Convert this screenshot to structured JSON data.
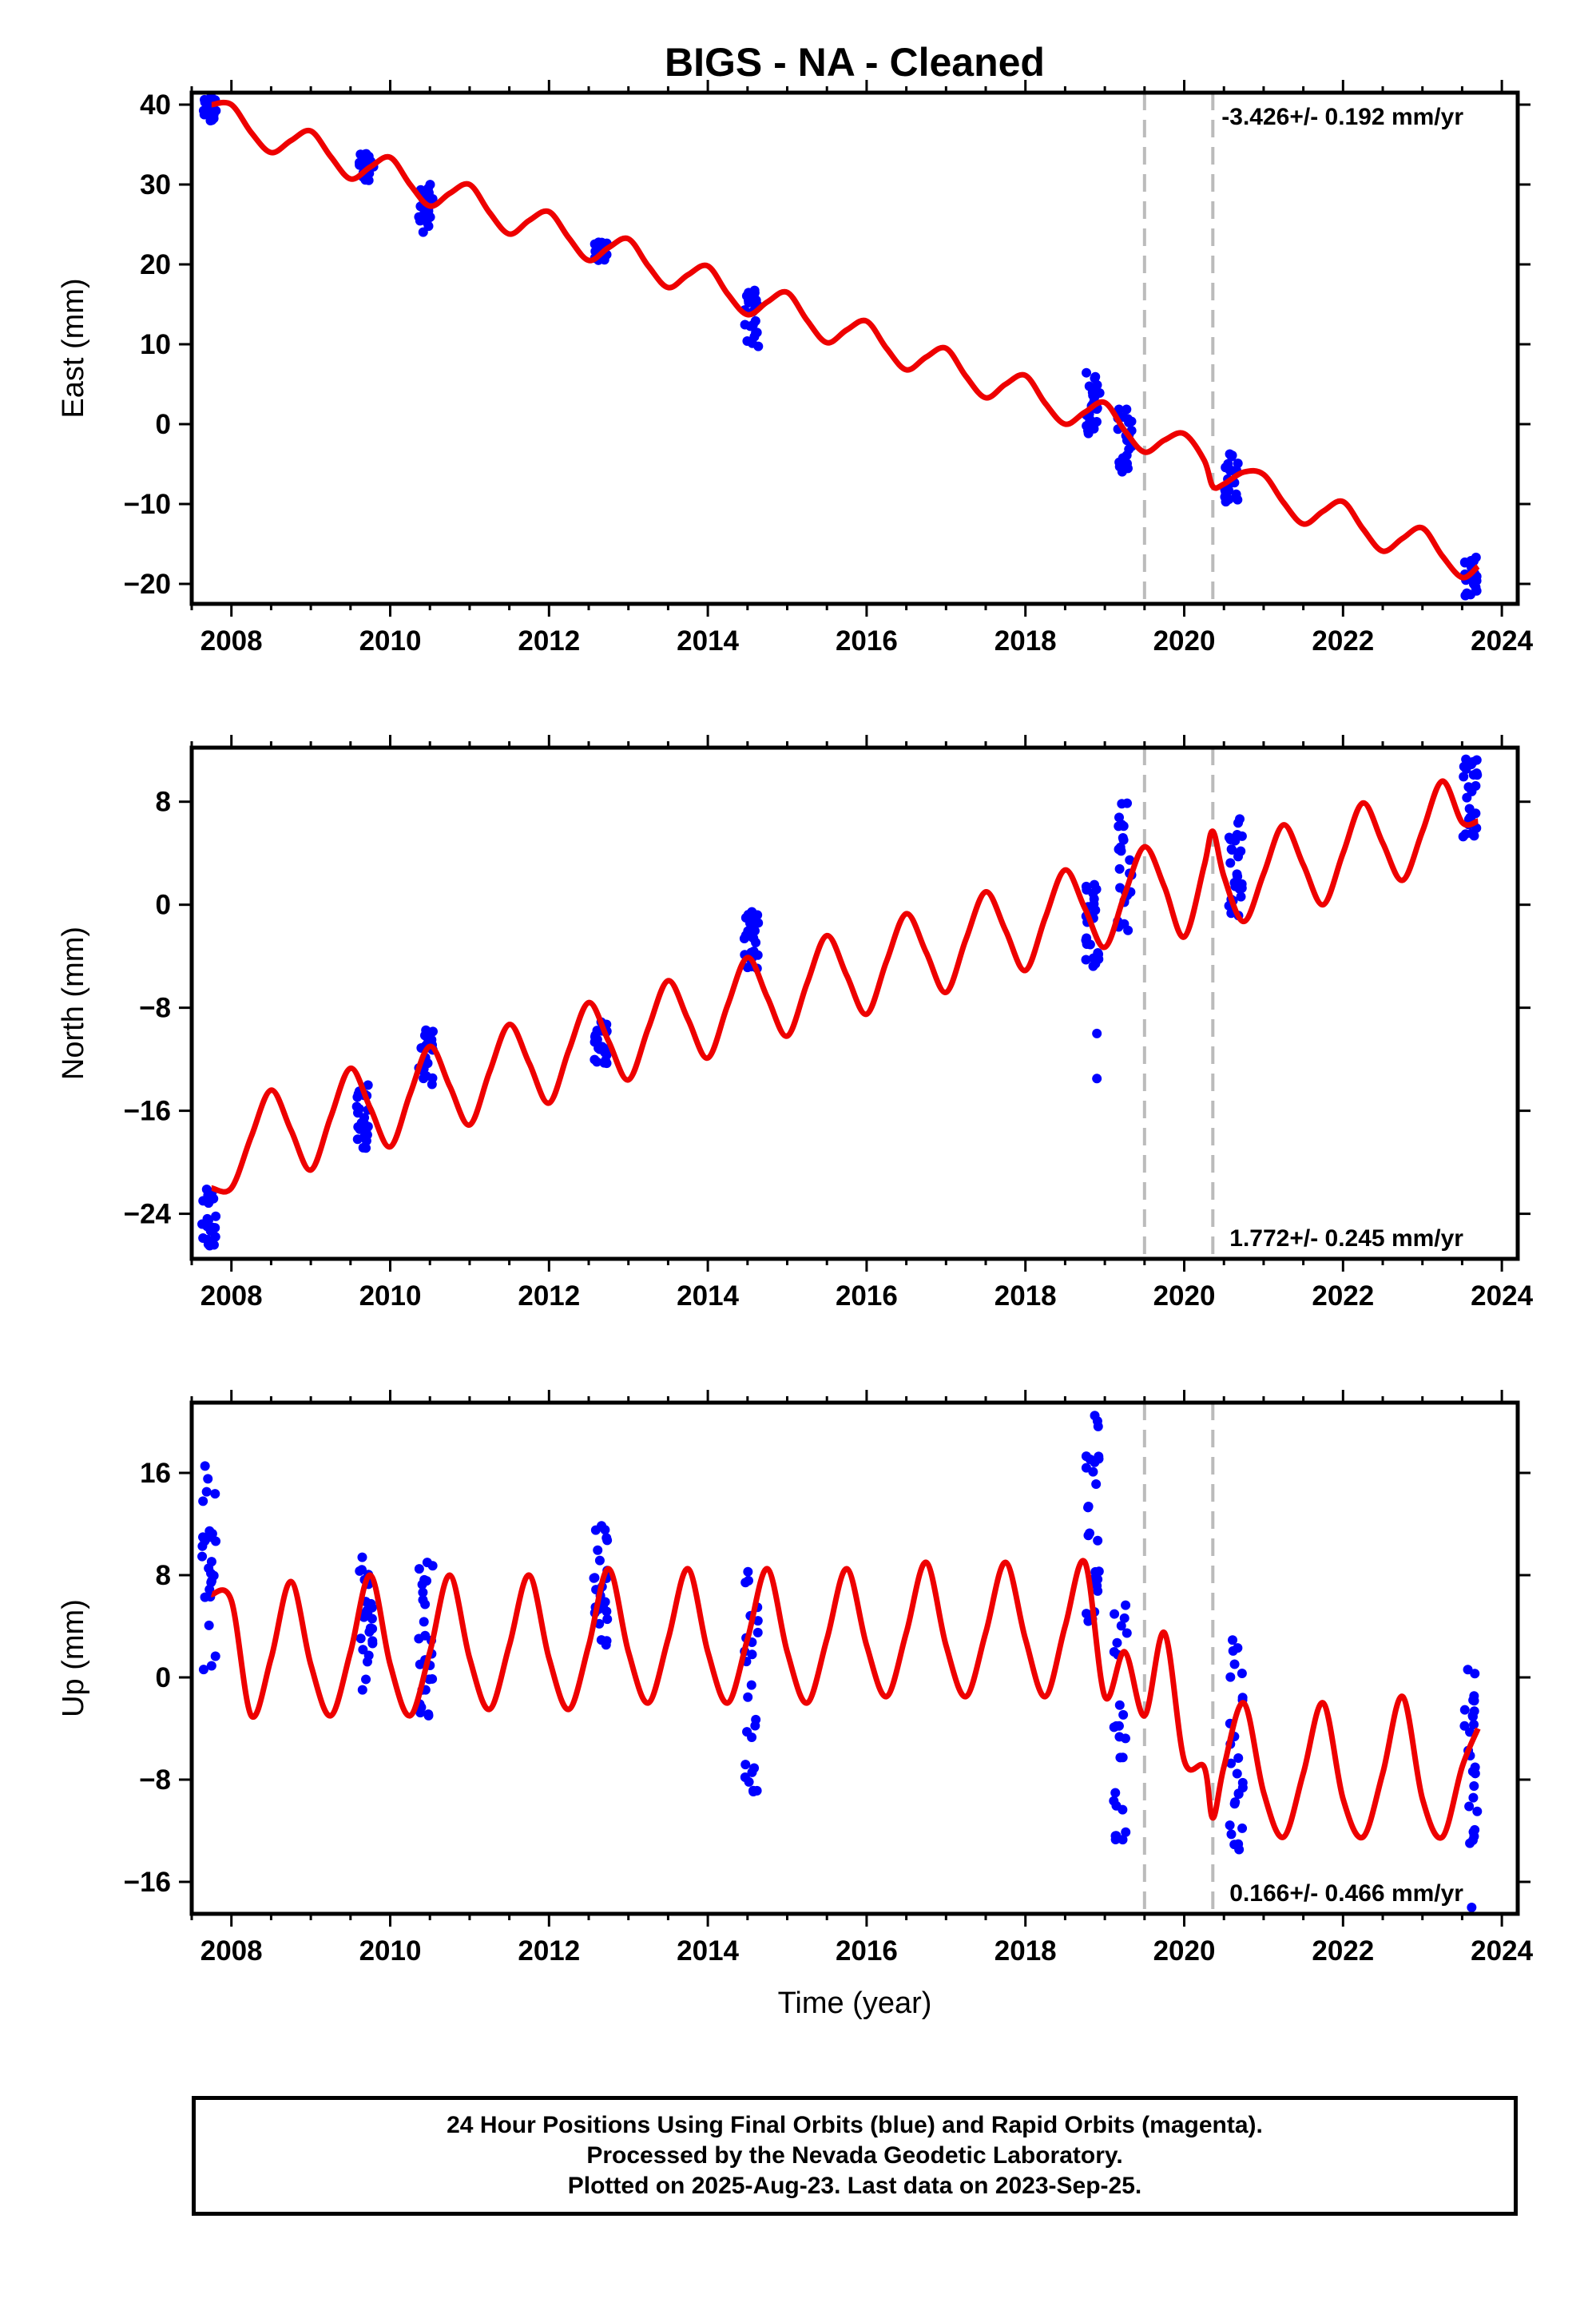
{
  "title": "BIGS  - NA - Cleaned",
  "xlabel": "Time (year)",
  "footer": {
    "line1": "24 Hour Positions Using Final Orbits (blue) and Rapid Orbits (magenta).",
    "line2": "Processed by the Nevada Geodetic Laboratory.",
    "line3": "Plotted on 2025-Aug-23. Last data on 2023-Sep-25."
  },
  "colors": {
    "data_points": "#0000ff",
    "model_line": "#ee0000",
    "event_lines": "#bbbbbb",
    "axes": "#000000"
  },
  "chart_data": [
    {
      "type": "scatter",
      "ylabel": "East (mm)",
      "rate_label": "-3.426+/- 0.192 mm/yr",
      "rate_position": "top-right",
      "xlim": [
        2007.5,
        2024.2
      ],
      "ylim": [
        -22.5,
        41.5
      ],
      "xticks": [
        2008,
        2010,
        2012,
        2014,
        2016,
        2018,
        2020,
        2022,
        2024
      ],
      "yticks": [
        -20,
        -10,
        0,
        10,
        20,
        30,
        40
      ],
      "ytick_labels": [
        "−20",
        "−10",
        "0",
        "10",
        "20",
        "30",
        "40"
      ],
      "grid": false,
      "event_lines": [
        2019.5,
        2020.36
      ],
      "model": {
        "x": [
          2007.75,
          2008.0,
          2008.25,
          2008.5,
          2008.75,
          2009.0,
          2009.25,
          2009.5,
          2009.75,
          2010.0,
          2010.25,
          2010.5,
          2010.75,
          2011.0,
          2011.25,
          2011.5,
          2011.75,
          2012.0,
          2012.25,
          2012.5,
          2012.75,
          2013.0,
          2013.25,
          2013.5,
          2013.75,
          2014.0,
          2014.25,
          2014.5,
          2014.75,
          2015.0,
          2015.25,
          2015.5,
          2015.75,
          2016.0,
          2016.25,
          2016.5,
          2016.75,
          2017.0,
          2017.25,
          2017.5,
          2017.75,
          2018.0,
          2018.25,
          2018.5,
          2018.75,
          2019.0,
          2019.25,
          2019.5,
          2019.75,
          2020.0,
          2020.25,
          2020.36,
          2020.5,
          2020.75,
          2021.0,
          2021.25,
          2021.5,
          2021.75,
          2022.0,
          2022.25,
          2022.5,
          2022.75,
          2023.0,
          2023.25,
          2023.5,
          2023.7
        ],
        "y": [
          40.0,
          40.0,
          36.5,
          34.0,
          35.5,
          36.7,
          33.5,
          30.7,
          32.2,
          33.4,
          30.0,
          27.3,
          28.9,
          30.0,
          26.5,
          23.8,
          25.5,
          26.6,
          23.3,
          20.5,
          22.1,
          23.2,
          19.8,
          17.1,
          18.7,
          19.8,
          16.3,
          13.7,
          15.3,
          16.5,
          13.0,
          10.2,
          11.8,
          12.9,
          9.5,
          6.8,
          8.4,
          9.5,
          6.0,
          3.3,
          5.0,
          6.1,
          2.6,
          0.0,
          1.5,
          2.7,
          -0.8,
          -3.5,
          -2.0,
          -1.2,
          -4.5,
          -7.8,
          -7.5,
          -6.0,
          -6.3,
          -9.8,
          -12.5,
          -10.9,
          -9.7,
          -13.1,
          -15.9,
          -14.3,
          -13.0,
          -16.5,
          -19.2,
          -17.8
        ]
      },
      "observations": [
        {
          "x": 2007.72,
          "y_min": 37.7,
          "y_max": 41.0
        },
        {
          "x": 2009.7,
          "y_min": 30.5,
          "y_max": 34.0
        },
        {
          "x": 2010.45,
          "y_min": 24.0,
          "y_max": 30.0
        },
        {
          "x": 2012.65,
          "y_min": 20.5,
          "y_max": 22.8
        },
        {
          "x": 2014.55,
          "y_min": 9.5,
          "y_max": 16.8
        },
        {
          "x": 2018.85,
          "y_min": -1.5,
          "y_max": 6.5
        },
        {
          "x": 2019.25,
          "y_min": -6.0,
          "y_max": 2.0
        },
        {
          "x": 2020.6,
          "y_min": -10.0,
          "y_max": -3.5
        },
        {
          "x": 2023.6,
          "y_min": -21.5,
          "y_max": -16.5
        }
      ]
    },
    {
      "type": "scatter",
      "ylabel": "North (mm)",
      "rate_label": "1.772+/- 0.245 mm/yr",
      "rate_position": "bottom-right",
      "xlim": [
        2007.5,
        2024.2
      ],
      "ylim": [
        -27.5,
        12.2
      ],
      "xticks": [
        2008,
        2010,
        2012,
        2014,
        2016,
        2018,
        2020,
        2022,
        2024
      ],
      "yticks": [
        -24,
        -16,
        -8,
        0,
        8
      ],
      "ytick_labels": [
        "−24",
        "−16",
        "−8",
        "0",
        "8"
      ],
      "grid": false,
      "event_lines": [
        2019.5,
        2020.36
      ],
      "model": {
        "x": [
          2007.75,
          2008.0,
          2008.25,
          2008.5,
          2008.75,
          2009.0,
          2009.25,
          2009.5,
          2009.75,
          2010.0,
          2010.25,
          2010.5,
          2010.75,
          2011.0,
          2011.25,
          2011.5,
          2011.75,
          2012.0,
          2012.25,
          2012.5,
          2012.75,
          2013.0,
          2013.25,
          2013.5,
          2013.75,
          2014.0,
          2014.25,
          2014.5,
          2014.75,
          2015.0,
          2015.25,
          2015.5,
          2015.75,
          2016.0,
          2016.25,
          2016.5,
          2016.75,
          2017.0,
          2017.25,
          2017.5,
          2017.75,
          2018.0,
          2018.25,
          2018.5,
          2018.75,
          2019.0,
          2019.25,
          2019.5,
          2019.75,
          2020.0,
          2020.25,
          2020.36,
          2020.5,
          2020.75,
          2021.0,
          2021.25,
          2021.5,
          2021.75,
          2022.0,
          2022.25,
          2022.5,
          2022.75,
          2023.0,
          2023.25,
          2023.5,
          2023.7
        ],
        "y": [
          -22.0,
          -22.0,
          -18.0,
          -14.4,
          -17.5,
          -20.6,
          -16.5,
          -12.7,
          -15.8,
          -18.8,
          -14.7,
          -11.0,
          -14.1,
          -17.1,
          -13.0,
          -9.3,
          -12.3,
          -15.4,
          -11.3,
          -7.6,
          -10.6,
          -13.6,
          -9.6,
          -5.9,
          -8.9,
          -11.9,
          -7.8,
          -4.1,
          -7.2,
          -10.2,
          -6.1,
          -2.4,
          -5.5,
          -8.5,
          -4.4,
          -0.7,
          -3.7,
          -6.8,
          -2.7,
          1.0,
          -2.0,
          -5.1,
          -1.0,
          2.7,
          -0.3,
          -3.3,
          0.8,
          4.5,
          1.4,
          -2.5,
          3.0,
          5.7,
          2.2,
          -1.3,
          2.4,
          6.2,
          3.1,
          0.0,
          4.0,
          7.9,
          4.8,
          1.9,
          5.7,
          9.6,
          6.4,
          6.5
        ]
      },
      "observations": [
        {
          "x": 2007.72,
          "y_min": -26.5,
          "y_max": -22.0
        },
        {
          "x": 2009.65,
          "y_min": -19.0,
          "y_max": -14.0
        },
        {
          "x": 2010.45,
          "y_min": -14.0,
          "y_max": -9.7
        },
        {
          "x": 2012.65,
          "y_min": -12.5,
          "y_max": -9.0
        },
        {
          "x": 2014.55,
          "y_min": -5.0,
          "y_max": 0.0
        },
        {
          "x": 2018.85,
          "y_min": -5.0,
          "y_max": 2.0
        },
        {
          "x": 2019.25,
          "y_min": -2.0,
          "y_max": 9.0
        },
        {
          "x": 2020.65,
          "y_min": -1.0,
          "y_max": 7.0
        },
        {
          "x": 2023.6,
          "y_min": 5.0,
          "y_max": 11.5
        },
        {
          "x": 2018.9,
          "y_min": -10.0,
          "y_max": -10.0
        },
        {
          "x": 2018.9,
          "y_min": -13.5,
          "y_max": -13.5
        }
      ]
    },
    {
      "type": "scatter",
      "ylabel": "Up (mm)",
      "rate_label": "0.166+/- 0.466 mm/yr",
      "rate_position": "bottom-right",
      "xlim": [
        2007.5,
        2024.2
      ],
      "ylim": [
        -18.5,
        21.5
      ],
      "xticks": [
        2008,
        2010,
        2012,
        2014,
        2016,
        2018,
        2020,
        2022,
        2024
      ],
      "yticks": [
        -16,
        -8,
        0,
        8,
        16
      ],
      "ytick_labels": [
        "−16",
        "−8",
        "0",
        "8",
        "16"
      ],
      "grid": false,
      "event_lines": [
        2019.5,
        2020.36
      ],
      "model": {
        "x": [
          2007.75,
          2008.0,
          2008.25,
          2008.5,
          2008.75,
          2009.0,
          2009.25,
          2009.5,
          2009.75,
          2010.0,
          2010.25,
          2010.5,
          2010.75,
          2011.0,
          2011.25,
          2011.5,
          2011.75,
          2012.0,
          2012.25,
          2012.5,
          2012.75,
          2013.0,
          2013.25,
          2013.5,
          2013.75,
          2014.0,
          2014.25,
          2014.5,
          2014.75,
          2015.0,
          2015.25,
          2015.5,
          2015.75,
          2016.0,
          2016.25,
          2016.5,
          2016.75,
          2017.0,
          2017.25,
          2017.5,
          2017.75,
          2018.0,
          2018.25,
          2018.5,
          2018.75,
          2019.0,
          2019.25,
          2019.5,
          2019.75,
          2020.0,
          2020.25,
          2020.36,
          2020.5,
          2020.75,
          2021.0,
          2021.25,
          2021.5,
          2021.75,
          2022.0,
          2022.25,
          2022.5,
          2022.75,
          2023.0,
          2023.25,
          2023.5,
          2023.7
        ],
        "y": [
          6.5,
          6.0,
          -3.0,
          1.5,
          7.5,
          1.0,
          -3.0,
          2.0,
          8.0,
          1.0,
          -3.0,
          2.0,
          8.0,
          1.5,
          -2.5,
          2.5,
          8.0,
          1.5,
          -2.5,
          2.5,
          8.5,
          2.0,
          -2.0,
          3.0,
          8.5,
          2.0,
          -2.0,
          3.0,
          8.5,
          2.0,
          -2.0,
          3.0,
          8.5,
          2.5,
          -1.5,
          3.5,
          9.0,
          2.5,
          -1.5,
          3.5,
          9.0,
          3.0,
          -1.5,
          4.0,
          9.0,
          -1.5,
          2.0,
          -3.0,
          3.5,
          -6.5,
          -7.0,
          -11.0,
          -7.0,
          -2.0,
          -9.0,
          -12.5,
          -7.5,
          -2.0,
          -9.5,
          -12.5,
          -7.5,
          -1.5,
          -9.5,
          -12.5,
          -7.0,
          -4.0
        ]
      },
      "observations": [
        {
          "x": 2007.72,
          "y_min": 0.0,
          "y_max": 17.0
        },
        {
          "x": 2009.7,
          "y_min": -1.0,
          "y_max": 10.0
        },
        {
          "x": 2010.45,
          "y_min": -4.0,
          "y_max": 9.5
        },
        {
          "x": 2012.65,
          "y_min": 2.0,
          "y_max": 13.0
        },
        {
          "x": 2014.55,
          "y_min": -9.0,
          "y_max": 9.0
        },
        {
          "x": 2018.85,
          "y_min": 4.0,
          "y_max": 21.0
        },
        {
          "x": 2019.2,
          "y_min": -13.0,
          "y_max": 6.0
        },
        {
          "x": 2020.65,
          "y_min": -15.0,
          "y_max": 3.0
        },
        {
          "x": 2023.6,
          "y_min": -13.0,
          "y_max": 2.0
        },
        {
          "x": 2023.62,
          "y_min": -18.0,
          "y_max": -18.0
        }
      ]
    }
  ]
}
